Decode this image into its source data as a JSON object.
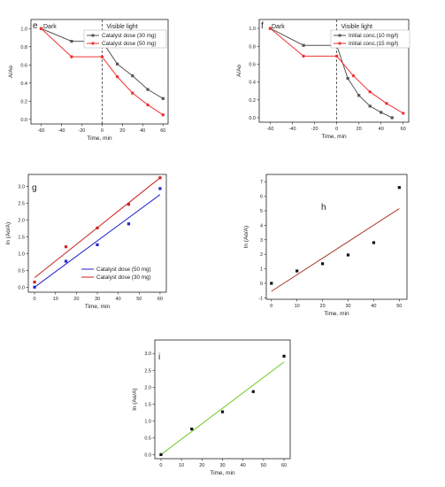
{
  "chart_data": [
    {
      "id": "e",
      "type": "line",
      "panel_label": "e",
      "xlabel": "Time, min",
      "ylabel": "A/Ao",
      "xlim": [
        -70,
        65
      ],
      "ylim": [
        -0.05,
        1.1
      ],
      "xticks": [
        -60,
        -40,
        -20,
        0,
        20,
        40,
        60
      ],
      "yticks": [
        0.0,
        0.2,
        0.4,
        0.6,
        0.8,
        1.0
      ],
      "annotations": {
        "dark": "Dark",
        "light": "Visible light"
      },
      "divider_x": 0,
      "legend_position": "top-right",
      "series": [
        {
          "name": "Catalyst dose (30 mg)",
          "color": "#555555",
          "marker": "square",
          "x": [
            -60,
            -30,
            0,
            15,
            30,
            45,
            60
          ],
          "y": [
            1.0,
            0.86,
            0.86,
            0.61,
            0.48,
            0.33,
            0.23
          ]
        },
        {
          "name": "Catalyst dose (50 mg)",
          "color": "#ee3333",
          "marker": "circle",
          "x": [
            -60,
            -30,
            0,
            15,
            30,
            45,
            60
          ],
          "y": [
            1.0,
            0.69,
            0.69,
            0.47,
            0.29,
            0.16,
            0.05
          ]
        }
      ]
    },
    {
      "id": "f",
      "type": "line",
      "panel_label": "f",
      "xlabel": "Time, min",
      "ylabel": "A/Ao",
      "xlim": [
        -70,
        65
      ],
      "ylim": [
        -0.05,
        1.1
      ],
      "xticks": [
        -60,
        -40,
        -20,
        0,
        20,
        40,
        60
      ],
      "yticks": [
        0.0,
        0.2,
        0.4,
        0.6,
        0.8,
        1.0
      ],
      "annotations": {
        "dark": "Dark",
        "light": "Visible light"
      },
      "divider_x": 0,
      "legend_position": "top-right",
      "series": [
        {
          "name": "Initial conc.(10 mg/l)",
          "color": "#555555",
          "marker": "square",
          "x": [
            -60,
            -30,
            0,
            10,
            20,
            30,
            40,
            50
          ],
          "y": [
            1.0,
            0.81,
            0.81,
            0.44,
            0.25,
            0.13,
            0.06,
            0.0
          ]
        },
        {
          "name": "Initial conc.(15 mg/l)",
          "color": "#ee3333",
          "marker": "circle",
          "x": [
            -60,
            -30,
            0,
            15,
            30,
            45,
            60
          ],
          "y": [
            1.0,
            0.69,
            0.69,
            0.47,
            0.29,
            0.16,
            0.05
          ]
        }
      ]
    },
    {
      "id": "g",
      "type": "scatter",
      "panel_label": "g",
      "xlabel": "Time, min",
      "ylabel": "ln (Ao/A)",
      "xlim": [
        -3,
        63
      ],
      "ylim": [
        -0.15,
        3.35
      ],
      "xticks": [
        0,
        10,
        20,
        30,
        40,
        50,
        60
      ],
      "yticks": [
        0.0,
        0.5,
        1.0,
        1.5,
        2.0,
        2.5,
        3.0
      ],
      "legend_position": "bottom-right",
      "series": [
        {
          "name": "Catalyst dose (50 mg)",
          "color": "#2222cc",
          "line_color": "#2222cc",
          "x": [
            0,
            15,
            30,
            45,
            60
          ],
          "y": [
            0.0,
            0.77,
            1.26,
            1.88,
            2.93
          ],
          "fit": [
            [
              0,
              0.0
            ],
            [
              60,
              2.75
            ]
          ]
        },
        {
          "name": "Catalyst dose (30 mg)",
          "color": "#cc2222",
          "line_color": "#cc2222",
          "x": [
            0,
            15,
            30,
            45,
            60
          ],
          "y": [
            0.15,
            1.2,
            1.76,
            2.46,
            3.25
          ],
          "fit": [
            [
              0,
              0.28
            ],
            [
              60,
              3.25
            ]
          ]
        }
      ]
    },
    {
      "id": "h",
      "type": "scatter",
      "panel_label": "h",
      "xlabel": "Time, min",
      "ylabel": "ln (Ao/A)",
      "xlim": [
        -2,
        53
      ],
      "ylim": [
        -1.1,
        7.5
      ],
      "xticks": [
        0,
        10,
        20,
        30,
        40,
        50
      ],
      "yticks": [
        -1,
        0,
        1,
        2,
        3,
        4,
        5,
        6,
        7
      ],
      "series": [
        {
          "color": "#111111",
          "line_color": "#aa3a2a",
          "x": [
            0,
            10,
            20,
            30,
            40,
            50
          ],
          "y": [
            0.0,
            0.85,
            1.35,
            1.95,
            2.8,
            6.6
          ],
          "fit": [
            [
              0,
              -0.55
            ],
            [
              50,
              5.15
            ]
          ]
        }
      ]
    },
    {
      "id": "i",
      "type": "scatter",
      "panel_label": "i",
      "xlabel": "Time, min",
      "ylabel": "ln (Ao/A)",
      "xlim": [
        -3,
        63
      ],
      "ylim": [
        -0.12,
        3.4
      ],
      "xticks": [
        0,
        10,
        20,
        30,
        40,
        50,
        60
      ],
      "yticks": [
        0.0,
        0.5,
        1.0,
        1.5,
        2.0,
        2.5,
        3.0
      ],
      "series": [
        {
          "color": "#111111",
          "line_color": "#66cc22",
          "x": [
            0,
            15,
            30,
            45,
            60
          ],
          "y": [
            0.0,
            0.76,
            1.27,
            1.87,
            2.92
          ],
          "fit": [
            [
              0,
              0.0
            ],
            [
              60,
              2.75
            ]
          ]
        }
      ]
    }
  ]
}
